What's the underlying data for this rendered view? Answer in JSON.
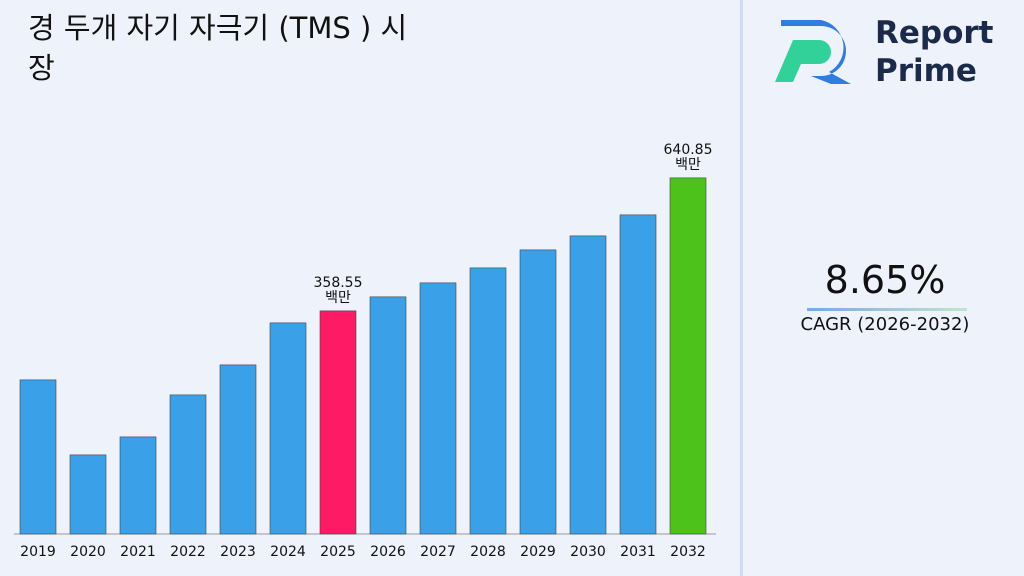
{
  "chart_data": {
    "type": "bar",
    "title": "경 두개 자기 자극기 (TMS ) 시장",
    "categories": [
      "2019",
      "2020",
      "2021",
      "2022",
      "2023",
      "2024",
      "2025",
      "2026",
      "2027",
      "2028",
      "2029",
      "2030",
      "2031",
      "2032"
    ],
    "values": [
      212.1,
      52.9,
      91.1,
      180.2,
      243.9,
      333.1,
      358.55,
      388.3,
      418.0,
      449.8,
      488.0,
      517.7,
      562.3,
      640.85
    ],
    "value_labels": [
      null,
      null,
      null,
      null,
      null,
      null,
      [
        "358.55",
        "백만"
      ],
      null,
      null,
      null,
      null,
      null,
      null,
      [
        "640.85",
        "백만"
      ]
    ],
    "colors": [
      "#3aa0e8",
      "#3aa0e8",
      "#3aa0e8",
      "#3aa0e8",
      "#3aa0e8",
      "#3aa0e8",
      "#ff1a66",
      "#3aa0e8",
      "#3aa0e8",
      "#3aa0e8",
      "#3aa0e8",
      "#3aa0e8",
      "#3aa0e8",
      "#4cc21a"
    ],
    "ylim": [
      -115,
      700
    ]
  },
  "brand": [
    "Report",
    "Prime"
  ],
  "cagr": {
    "value": "8.65%",
    "label": "CAGR (2026-2032)"
  }
}
